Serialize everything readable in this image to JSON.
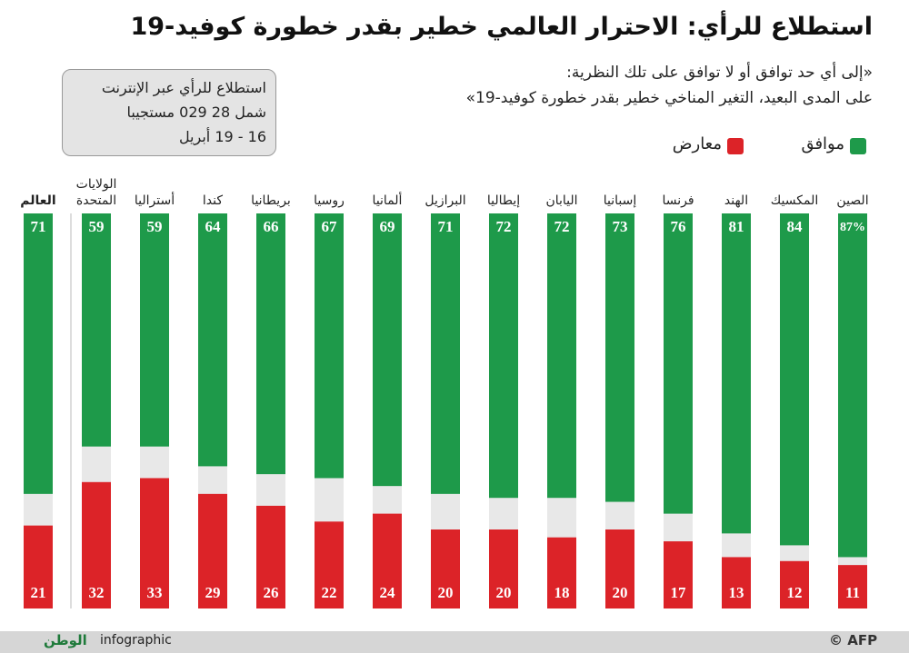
{
  "chart_data": {
    "type": "bar",
    "stacked": true,
    "title": "استطلاع للرأي: الاحترار العالمي خطير بقدر خطورة كوفيد-19",
    "subtitle": [
      "«إلى أي حد توافق أو لا توافق على تلك النظرية:",
      "على المدى البعيد، التغير المناخي خطير بقدر خطورة كوفيد-19»"
    ],
    "note": [
      "استطلاع للرأي عبر الإنترنت",
      "شمل 28 029 مستجيبا",
      "16 - 19 أبريل"
    ],
    "categories": [
      "الصين",
      "المكسيك",
      "الهند",
      "فرنسا",
      "إسبانيا",
      "اليابان",
      "إيطاليا",
      "البرازيل",
      "ألمانيا",
      "روسيا",
      "بريطانيا",
      "كندا",
      "أستراليا",
      "الولايات المتحدة",
      "العالم"
    ],
    "ylim": [
      0,
      100
    ],
    "track_color": "#e8e8e8",
    "series": [
      {
        "name": "موافق",
        "color": "#1e9a4a",
        "values": [
          87,
          84,
          81,
          76,
          73,
          72,
          72,
          71,
          69,
          67,
          66,
          64,
          59,
          59,
          71
        ],
        "value_labels": [
          "87%",
          "84",
          "81",
          "76",
          "73",
          "72",
          "72",
          "71",
          "69",
          "67",
          "66",
          "64",
          "59",
          "59",
          "71"
        ]
      },
      {
        "name": "معارض",
        "color": "#dc2328",
        "values": [
          11,
          12,
          13,
          17,
          20,
          18,
          20,
          20,
          24,
          22,
          26,
          29,
          33,
          32,
          21
        ]
      }
    ],
    "footer": {
      "label": "infographic",
      "brand": "الوطن",
      "credit": "© AFP"
    }
  }
}
